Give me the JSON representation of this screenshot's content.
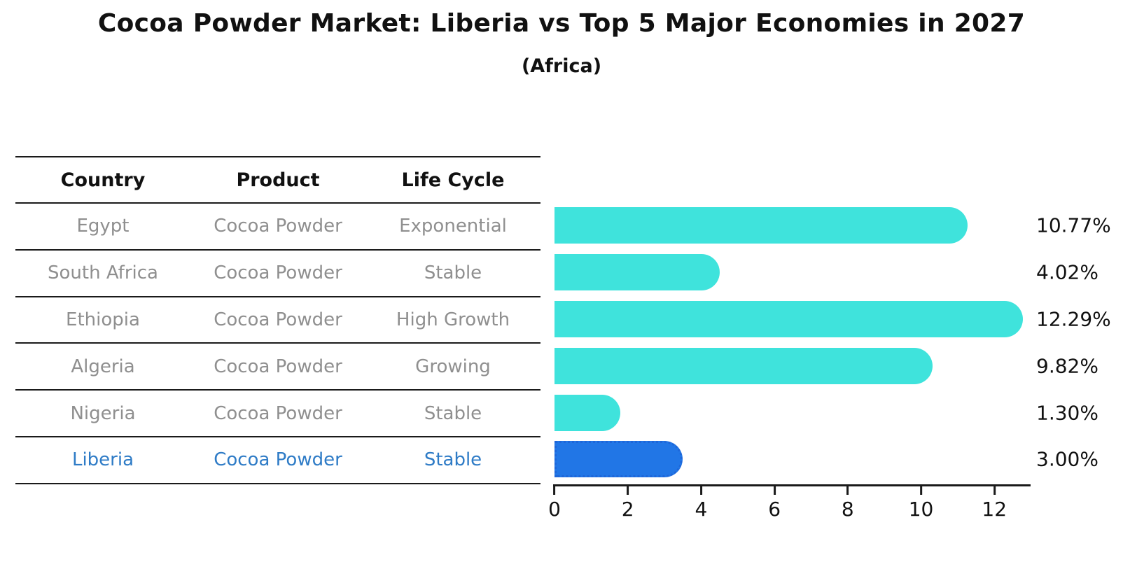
{
  "title": "Cocoa Powder Market: Liberia vs Top 5 Major Economies in 2027",
  "subtitle": "(Africa)",
  "table": {
    "headers": [
      "Country",
      "Product",
      "Life Cycle"
    ],
    "rows": [
      {
        "country": "Egypt",
        "product": "Cocoa Powder",
        "life_cycle": "Exponential",
        "highlight": false
      },
      {
        "country": "South Africa",
        "product": "Cocoa Powder",
        "life_cycle": "Stable",
        "highlight": false
      },
      {
        "country": "Ethiopia",
        "product": "Cocoa Powder",
        "life_cycle": "High Growth",
        "highlight": false
      },
      {
        "country": "Algeria",
        "product": "Cocoa Powder",
        "life_cycle": "Growing",
        "highlight": false
      },
      {
        "country": "Nigeria",
        "product": "Cocoa Powder",
        "life_cycle": "Stable",
        "highlight": false
      },
      {
        "country": "Liberia",
        "product": "Cocoa Powder",
        "life_cycle": "Stable",
        "highlight": true
      }
    ]
  },
  "chart_data": {
    "type": "bar",
    "orientation": "horizontal",
    "title": "Cocoa Powder Market: Liberia vs Top 5 Major Economies in 2027",
    "subtitle": "(Africa)",
    "categories": [
      "Egypt",
      "South Africa",
      "Ethiopia",
      "Algeria",
      "Nigeria",
      "Liberia"
    ],
    "values": [
      10.77,
      4.02,
      12.29,
      9.82,
      1.3,
      3.0
    ],
    "value_labels": [
      "10.77%",
      "4.02%",
      "12.29%",
      "9.82%",
      "1.30%",
      "3.00%"
    ],
    "xticks": [
      0,
      2,
      4,
      6,
      8,
      10,
      12
    ],
    "xlim": [
      0,
      12.95
    ],
    "grid": false,
    "legend": false,
    "bar_color": "#3fe3dc",
    "highlight_index": 5,
    "highlight_bar_color": "#2176e6",
    "highlight_border_color": "#1e66d9",
    "highlight_text_color": "#2e7bc6"
  },
  "colors": {
    "row_text": "#8f8f8f",
    "header_text": "#111111",
    "line": "#1a1a1a",
    "label_text": "#111111"
  }
}
